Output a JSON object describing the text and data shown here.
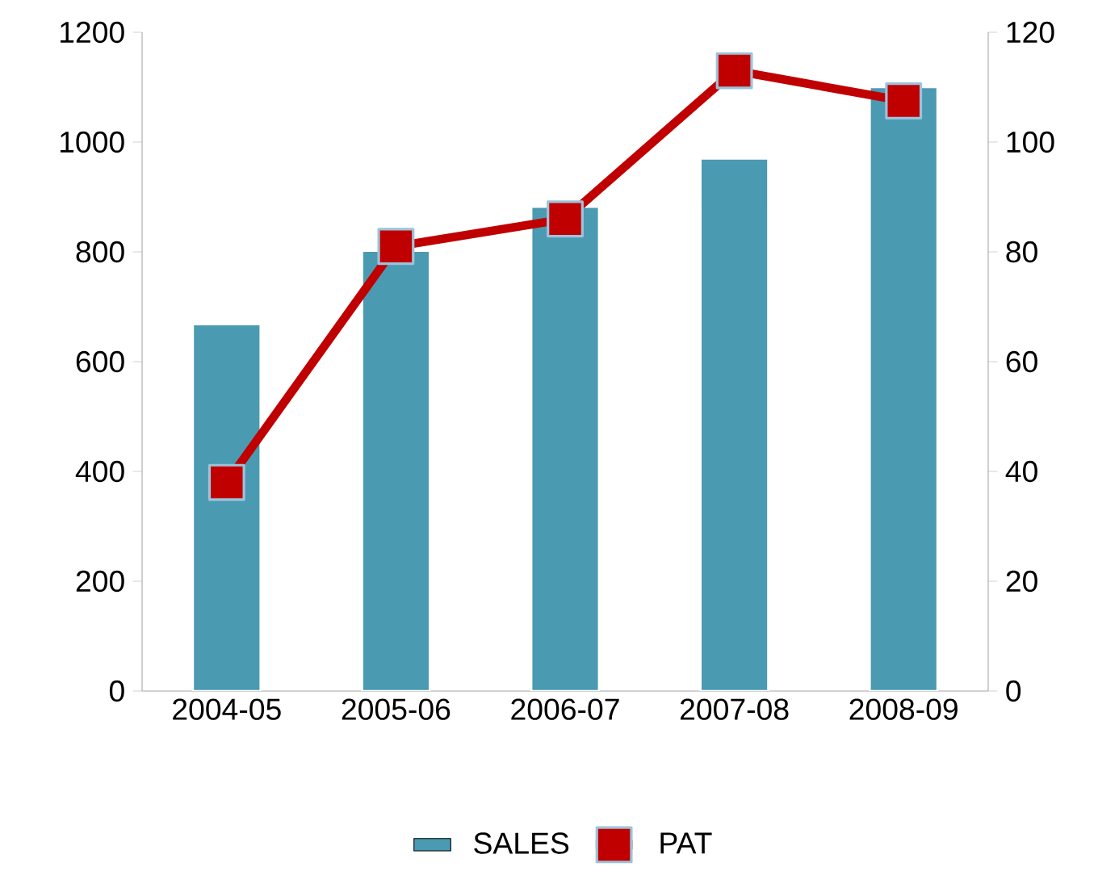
{
  "chart_data": {
    "type": "bar",
    "categories": [
      "2004-05",
      "2005-06",
      "2006-07",
      "2007-08",
      "2008-09"
    ],
    "series": [
      {
        "name": "SALES",
        "color": "#4a9ab2",
        "values": [
          668,
          802,
          882,
          970,
          1100
        ]
      },
      {
        "name": "PAT",
        "type": "line",
        "axis": "y2",
        "color": "#c00000",
        "values": [
          38,
          81,
          86,
          113,
          107.5
        ]
      }
    ],
    "ylim": [
      0,
      1200
    ],
    "yticks": [
      0,
      200,
      400,
      600,
      800,
      1000,
      1200
    ],
    "y2lim": [
      0,
      120
    ],
    "y2ticks": [
      0,
      20,
      40,
      60,
      80,
      100,
      120
    ],
    "legend": "bottom",
    "marker": "square",
    "line_style": "solid",
    "grid": false
  }
}
